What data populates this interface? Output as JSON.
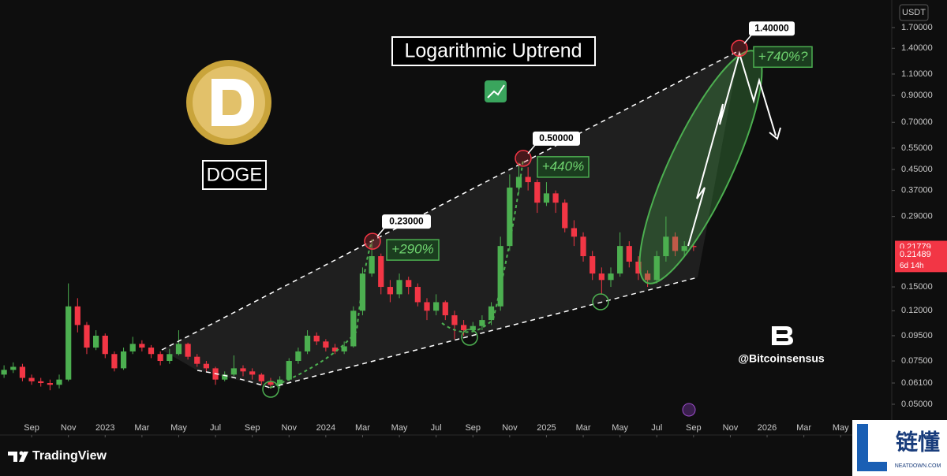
{
  "chart_data": {
    "type": "candlestick",
    "title": "Logarithmic Uptrend",
    "asset": "DOGE",
    "currency": "USDT",
    "log_scale": true,
    "grid": false,
    "up_color": "#4caf50",
    "down_color": "#f23645",
    "x": [
      -1.5,
      -1,
      -0.5,
      0,
      0.5,
      1,
      1.5,
      2,
      2.5,
      3,
      3.5,
      4,
      4.5,
      5,
      5.5,
      6,
      6.5,
      7,
      7.5,
      8,
      8.5,
      9,
      9.5,
      10,
      10.5,
      11,
      11.5,
      12,
      12.5,
      13,
      13.5,
      14,
      14.5,
      15,
      15.5,
      16,
      16.5,
      17,
      17.5,
      18,
      18.5,
      19,
      19.5,
      20,
      20.5,
      21,
      21.5,
      22,
      22.5,
      23,
      23.5,
      24,
      24.5,
      25,
      25.5,
      26,
      26.5,
      27,
      27.5,
      28,
      28.5,
      29,
      29.5,
      30,
      30.5,
      31,
      31.5,
      32,
      32.5,
      33,
      33.5,
      34,
      34.5,
      35,
      35.5,
      36
    ],
    "open": [
      0.066,
      0.069,
      0.071,
      0.064,
      0.062,
      0.061,
      0.06,
      0.063,
      0.125,
      0.105,
      0.085,
      0.095,
      0.08,
      0.07,
      0.082,
      0.088,
      0.085,
      0.08,
      0.075,
      0.08,
      0.088,
      0.078,
      0.073,
      0.07,
      0.063,
      0.066,
      0.07,
      0.068,
      0.066,
      0.062,
      0.06,
      0.063,
      0.075,
      0.082,
      0.095,
      0.09,
      0.085,
      0.082,
      0.086,
      0.12,
      0.17,
      0.2,
      0.15,
      0.14,
      0.16,
      0.15,
      0.13,
      0.12,
      0.13,
      0.115,
      0.105,
      0.1,
      0.104,
      0.11,
      0.125,
      0.22,
      0.38,
      0.42,
      0.4,
      0.33,
      0.36,
      0.33,
      0.26,
      0.24,
      0.2,
      0.17,
      0.16,
      0.17,
      0.22,
      0.19,
      0.17,
      0.16,
      0.2,
      0.24,
      0.21,
      0.22
    ],
    "high": [
      0.072,
      0.074,
      0.073,
      0.066,
      0.064,
      0.063,
      0.066,
      0.155,
      0.135,
      0.108,
      0.1,
      0.097,
      0.082,
      0.085,
      0.094,
      0.091,
      0.087,
      0.082,
      0.084,
      0.1,
      0.089,
      0.08,
      0.075,
      0.071,
      0.068,
      0.079,
      0.072,
      0.07,
      0.067,
      0.064,
      0.065,
      0.077,
      0.085,
      0.1,
      0.098,
      0.092,
      0.088,
      0.09,
      0.125,
      0.18,
      0.23,
      0.205,
      0.16,
      0.17,
      0.165,
      0.155,
      0.135,
      0.14,
      0.132,
      0.12,
      0.11,
      0.108,
      0.115,
      0.13,
      0.24,
      0.43,
      0.48,
      0.46,
      0.41,
      0.4,
      0.37,
      0.34,
      0.28,
      0.25,
      0.21,
      0.18,
      0.18,
      0.25,
      0.23,
      0.2,
      0.175,
      0.21,
      0.29,
      0.25,
      0.23,
      0.225
    ],
    "low": [
      0.064,
      0.067,
      0.062,
      0.06,
      0.059,
      0.057,
      0.058,
      0.062,
      0.098,
      0.08,
      0.083,
      0.077,
      0.068,
      0.069,
      0.08,
      0.082,
      0.077,
      0.072,
      0.073,
      0.079,
      0.076,
      0.071,
      0.068,
      0.06,
      0.062,
      0.065,
      0.065,
      0.063,
      0.06,
      0.058,
      0.058,
      0.062,
      0.073,
      0.08,
      0.087,
      0.082,
      0.08,
      0.08,
      0.085,
      0.115,
      0.165,
      0.14,
      0.13,
      0.135,
      0.14,
      0.125,
      0.11,
      0.115,
      0.11,
      0.092,
      0.095,
      0.098,
      0.1,
      0.105,
      0.12,
      0.21,
      0.36,
      0.37,
      0.3,
      0.32,
      0.3,
      0.25,
      0.22,
      0.19,
      0.16,
      0.14,
      0.15,
      0.165,
      0.18,
      0.16,
      0.15,
      0.155,
      0.19,
      0.2,
      0.2,
      0.21
    ],
    "close": [
      0.069,
      0.071,
      0.064,
      0.062,
      0.061,
      0.06,
      0.063,
      0.125,
      0.105,
      0.085,
      0.095,
      0.08,
      0.07,
      0.082,
      0.088,
      0.085,
      0.08,
      0.075,
      0.08,
      0.088,
      0.078,
      0.073,
      0.07,
      0.063,
      0.066,
      0.07,
      0.068,
      0.066,
      0.062,
      0.06,
      0.063,
      0.075,
      0.082,
      0.095,
      0.09,
      0.085,
      0.082,
      0.086,
      0.12,
      0.17,
      0.2,
      0.15,
      0.14,
      0.16,
      0.15,
      0.13,
      0.12,
      0.13,
      0.115,
      0.105,
      0.1,
      0.104,
      0.11,
      0.125,
      0.22,
      0.38,
      0.42,
      0.4,
      0.33,
      0.36,
      0.33,
      0.26,
      0.24,
      0.2,
      0.17,
      0.16,
      0.17,
      0.22,
      0.19,
      0.17,
      0.16,
      0.2,
      0.24,
      0.21,
      0.22,
      0.21779
    ],
    "xlim": [
      -1.72,
      46.78
    ],
    "xticks": [
      {
        "value": 0,
        "label": "Sep"
      },
      {
        "value": 2,
        "label": "Nov"
      },
      {
        "value": 4,
        "label": "2023"
      },
      {
        "value": 6,
        "label": "Mar"
      },
      {
        "value": 8,
        "label": "May"
      },
      {
        "value": 10,
        "label": "Jul"
      },
      {
        "value": 12,
        "label": "Sep"
      },
      {
        "value": 14,
        "label": "Nov"
      },
      {
        "value": 16,
        "label": "2024"
      },
      {
        "value": 18,
        "label": "Mar"
      },
      {
        "value": 20,
        "label": "May"
      },
      {
        "value": 22,
        "label": "Jul"
      },
      {
        "value": 24,
        "label": "Sep"
      },
      {
        "value": 26,
        "label": "Nov"
      },
      {
        "value": 28,
        "label": "2025"
      },
      {
        "value": 30,
        "label": "Mar"
      },
      {
        "value": 32,
        "label": "May"
      },
      {
        "value": 34,
        "label": "Jul"
      },
      {
        "value": 36,
        "label": "Sep"
      },
      {
        "value": 38,
        "label": "Nov"
      },
      {
        "value": 40,
        "label": "2026"
      },
      {
        "value": 42,
        "label": "Mar"
      },
      {
        "value": 44,
        "label": "May"
      }
    ],
    "ylim": [
      0.0441,
      2.2
    ],
    "yticks": [
      {
        "value": 1.7,
        "label": "1.70000"
      },
      {
        "value": 1.4,
        "label": "1.40000"
      },
      {
        "value": 1.1,
        "label": "1.10000"
      },
      {
        "value": 0.9,
        "label": "0.90000"
      },
      {
        "value": 0.7,
        "label": "0.70000"
      },
      {
        "value": 0.55,
        "label": "0.55000"
      },
      {
        "value": 0.45,
        "label": "0.45000"
      },
      {
        "value": 0.37,
        "label": "0.37000"
      },
      {
        "value": 0.29,
        "label": "0.29000"
      },
      {
        "value": 0.15,
        "label": "0.15000"
      },
      {
        "value": 0.12,
        "label": "0.12000"
      },
      {
        "value": 0.095,
        "label": "0.09500"
      },
      {
        "value": 0.075,
        "label": "0.07500"
      },
      {
        "value": 0.061,
        "label": "0.06100"
      },
      {
        "value": 0.05,
        "label": "0.05000"
      }
    ],
    "price_tags": [
      0.21779,
      0.21489
    ],
    "countdown": "6d 14h",
    "annotations": [
      {
        "price": {
          "value": 0.23,
          "label": "0.23000"
        },
        "gain": "+290%"
      },
      {
        "price": {
          "value": 0.5,
          "label": "0.50000"
        },
        "gain": "+440%"
      },
      {
        "price": {
          "value": 1.4,
          "label": "1.40000"
        },
        "gain": "+740%?"
      }
    ]
  },
  "branding": {
    "author": "@Bitcoinsensus",
    "platform": "TradingView",
    "watermark": "链懂",
    "watermark_site": "NEATDOWN.COM"
  }
}
